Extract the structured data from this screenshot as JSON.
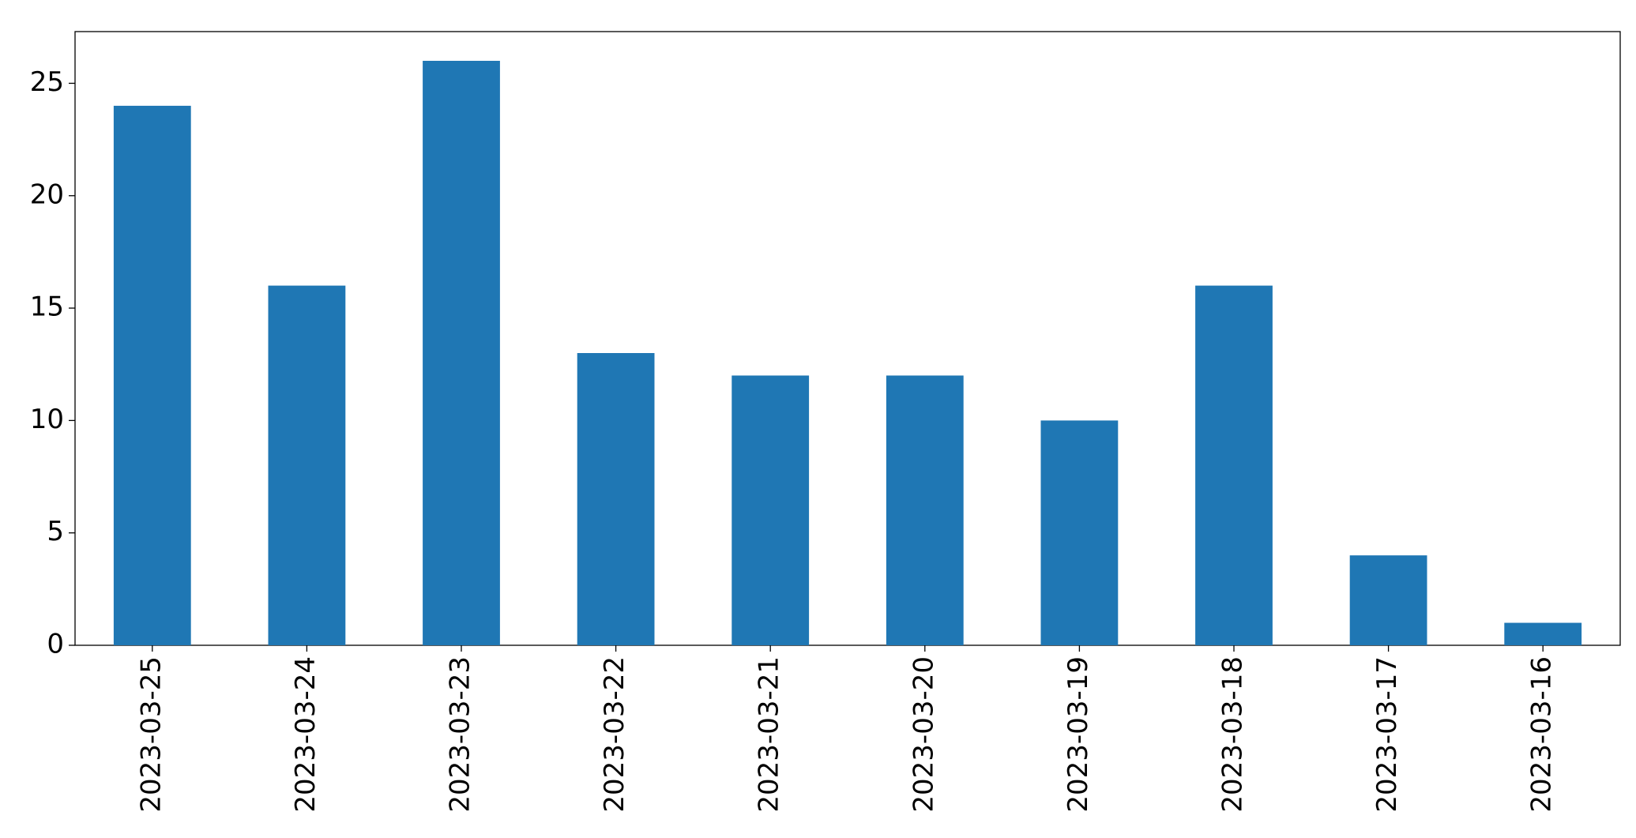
{
  "chart_data": {
    "type": "bar",
    "categories": [
      "2023-03-25",
      "2023-03-24",
      "2023-03-23",
      "2023-03-22",
      "2023-03-21",
      "2023-03-20",
      "2023-03-19",
      "2023-03-18",
      "2023-03-17",
      "2023-03-16"
    ],
    "values": [
      24,
      16,
      26,
      13,
      12,
      12,
      10,
      16,
      4,
      1
    ],
    "color": "#1f77b4",
    "ylim": [
      0,
      27.3
    ],
    "yticks": [
      0,
      5,
      10,
      15,
      20,
      25
    ],
    "grid": false
  }
}
